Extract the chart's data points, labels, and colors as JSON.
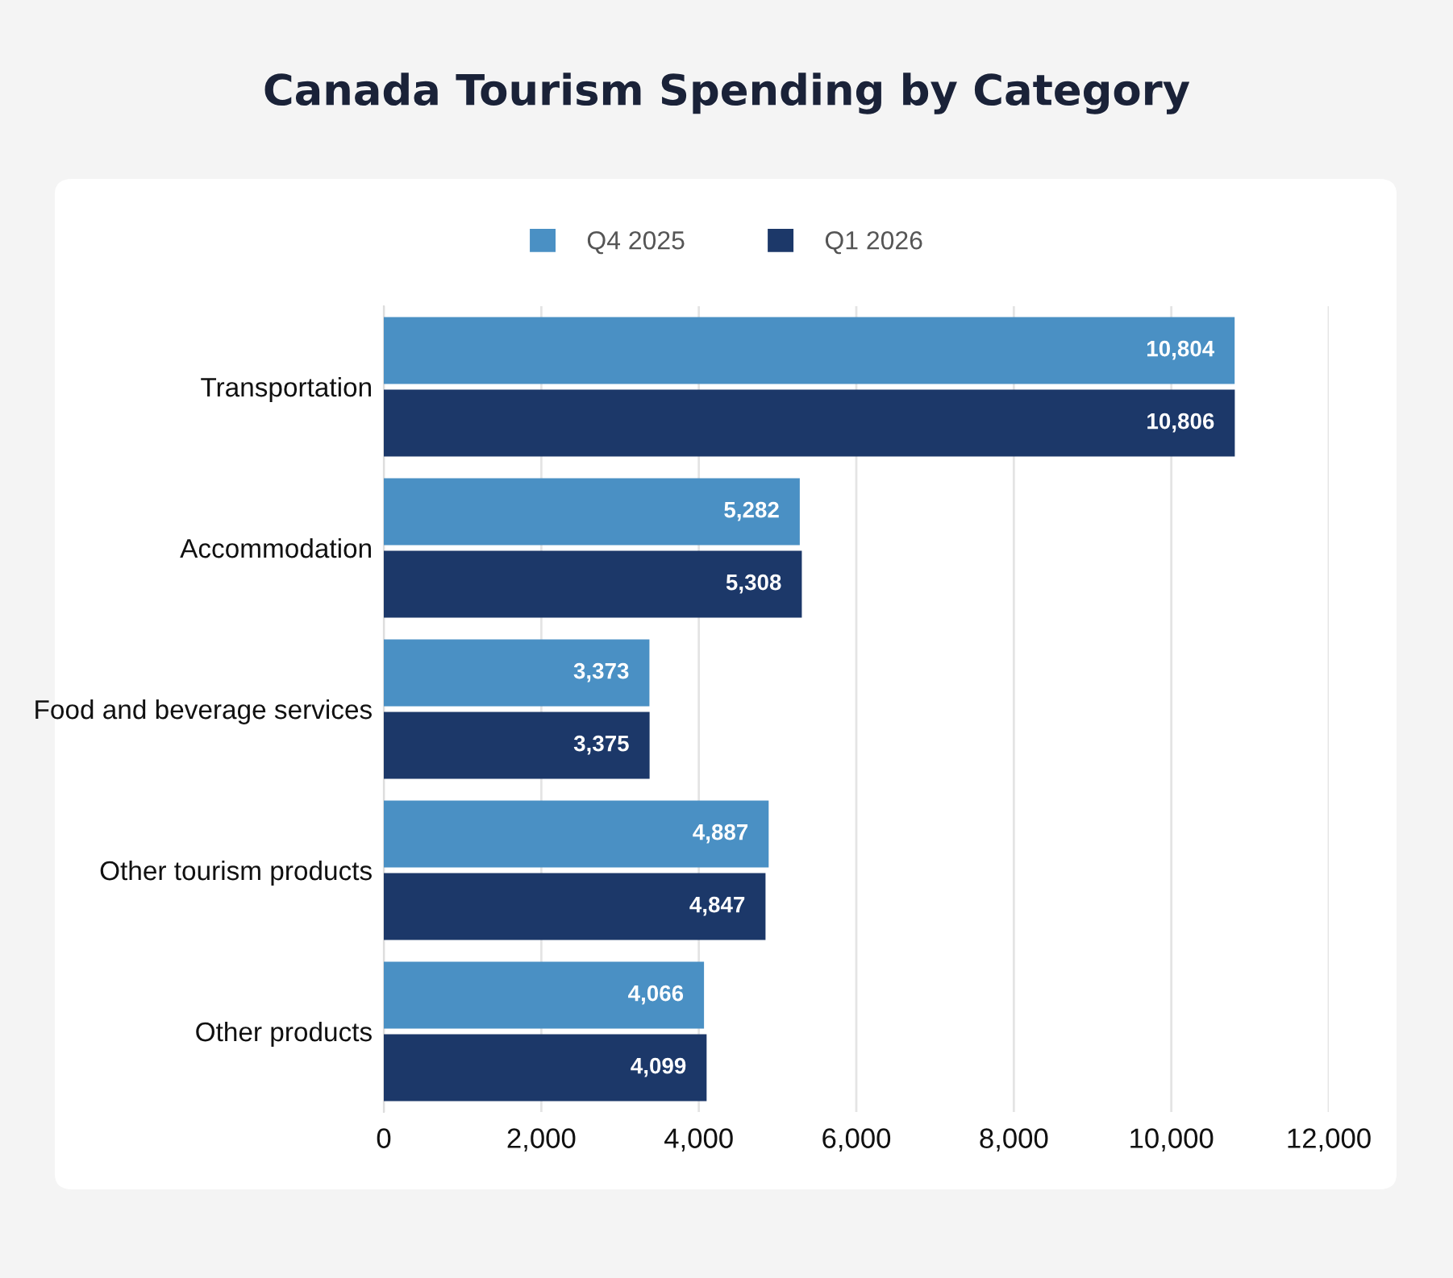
{
  "chart_data": {
    "type": "bar",
    "orientation": "horizontal",
    "title": "Canada Tourism Spending by Category",
    "categories": [
      "Transportation",
      "Accommodation",
      "Food and beverage services",
      "Other tourism products",
      "Other products"
    ],
    "series": [
      {
        "name": "Q4 2025",
        "color": "#4a90c4",
        "values": [
          10804,
          5282,
          3373,
          4887,
          4066
        ],
        "value_labels": [
          "10,804",
          "5,282",
          "3,373",
          "4,887",
          "4,066"
        ]
      },
      {
        "name": "Q1 2026",
        "color": "#1c3869",
        "values": [
          10806,
          5308,
          3375,
          4847,
          4099
        ],
        "value_labels": [
          "10,806",
          "5,308",
          "3,375",
          "4,847",
          "4,099"
        ]
      }
    ],
    "xlim": [
      0,
      12000
    ],
    "xticks": [
      0,
      {
        "value": 2000,
        "label": "2,000"
      },
      {
        "value": 4000,
        "label": "4,000"
      },
      {
        "value": 6000,
        "label": "6,000"
      },
      {
        "value": 8000,
        "label": "8,000"
      },
      {
        "value": 10000,
        "label": "10,000"
      },
      {
        "value": 12000,
        "label": "12,000"
      }
    ],
    "grid": "x",
    "legend": "top"
  }
}
